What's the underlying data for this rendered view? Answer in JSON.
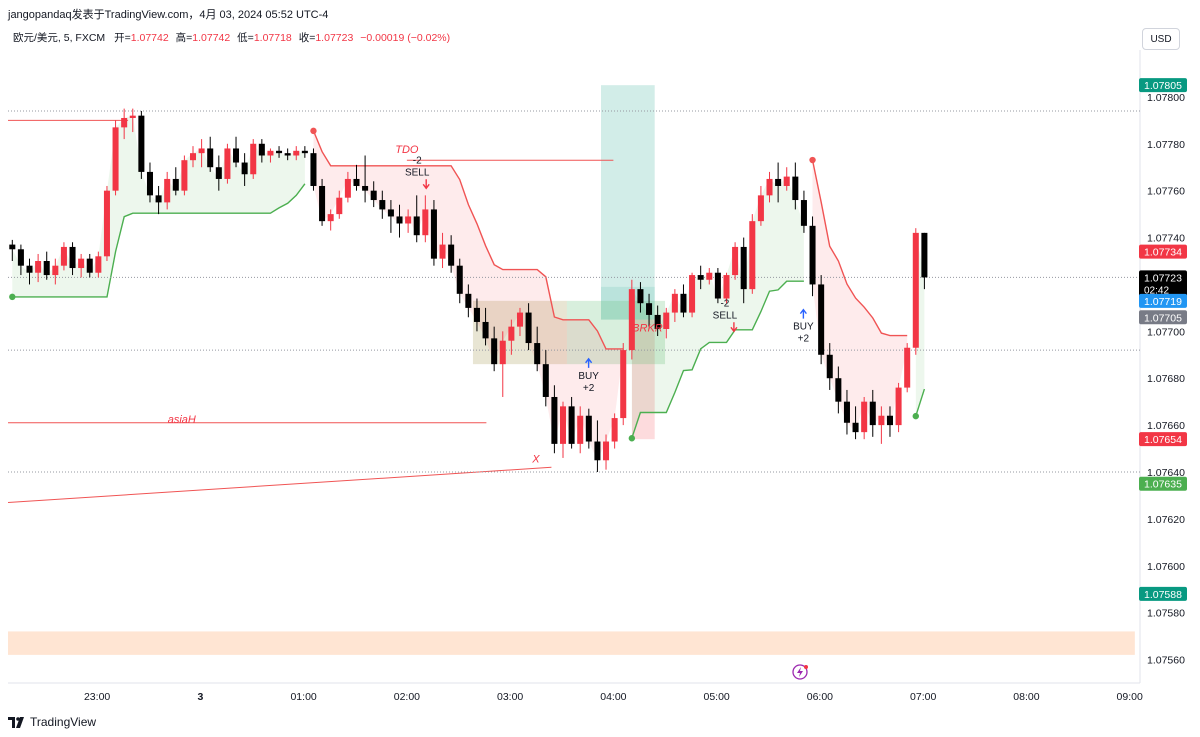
{
  "header": {
    "publisher": "jangopandaq发表于TradingView.com，4月 03, 2024 05:52 UTC-4",
    "symbol": "欧元/美元, 5, FXCM",
    "open_label": "开=",
    "open": "1.07742",
    "high_label": "高=",
    "high": "1.07742",
    "low_label": "低=",
    "low": "1.07718",
    "close_label": "收=",
    "close": "1.07723",
    "change": "−0.00019 (−0.02%)",
    "currency": "USD"
  },
  "footer": {
    "logo_text": "TradingView",
    "logo_icon": "tradingview-logo-icon"
  },
  "colors": {
    "up": "#f23645",
    "down": "#000000",
    "accent_green": "#089981",
    "blue": "#2962ff",
    "supertrend_up": "#4caf50",
    "supertrend_down": "#f05454"
  },
  "chart_data": {
    "type": "candlestick",
    "ylim": [
      1.0755,
      1.0782
    ],
    "y_ticks": [
      "1.07800",
      "1.07780",
      "1.07760",
      "1.07740",
      "1.07720",
      "1.07700",
      "1.07680",
      "1.07660",
      "1.07640",
      "1.07620",
      "1.07600",
      "1.07580",
      "1.07560"
    ],
    "x_ticks": [
      {
        "label": "23:00",
        "t": 23.0
      },
      {
        "label": "3",
        "t": 24.0
      },
      {
        "label": "01:00",
        "t": 25.0
      },
      {
        "label": "02:00",
        "t": 26.0
      },
      {
        "label": "03:00",
        "t": 27.0
      },
      {
        "label": "04:00",
        "t": 28.0
      },
      {
        "label": "05:00",
        "t": 29.0
      },
      {
        "label": "06:00",
        "t": 30.0
      },
      {
        "label": "07:00",
        "t": 31.0
      },
      {
        "label": "08:00",
        "t": 32.0
      },
      {
        "label": "09:00",
        "t": 33.0
      }
    ],
    "x_range": [
      22.137,
      33.1
    ],
    "candles": [
      [
        1.07737,
        1.07739,
        1.0773,
        1.07735
      ],
      [
        1.07735,
        1.07737,
        1.07724,
        1.07728
      ],
      [
        1.07728,
        1.07731,
        1.0772,
        1.07725
      ],
      [
        1.07725,
        1.07733,
        1.07721,
        1.0773
      ],
      [
        1.0773,
        1.07734,
        1.07722,
        1.07724
      ],
      [
        1.07724,
        1.07731,
        1.0772,
        1.07728
      ],
      [
        1.07728,
        1.07738,
        1.07726,
        1.07736
      ],
      [
        1.07736,
        1.07738,
        1.07724,
        1.07727
      ],
      [
        1.07727,
        1.07733,
        1.07723,
        1.07731
      ],
      [
        1.07731,
        1.07733,
        1.07723,
        1.07725
      ],
      [
        1.07725,
        1.07734,
        1.07723,
        1.07732
      ],
      [
        1.07732,
        1.07762,
        1.0773,
        1.0776
      ],
      [
        1.0776,
        1.0779,
        1.07758,
        1.07787
      ],
      [
        1.07787,
        1.07795,
        1.07782,
        1.07791
      ],
      [
        1.07791,
        1.07795,
        1.07785,
        1.07792
      ],
      [
        1.07792,
        1.07794,
        1.07765,
        1.07768
      ],
      [
        1.07768,
        1.07772,
        1.07755,
        1.07758
      ],
      [
        1.07758,
        1.07762,
        1.0775,
        1.07755
      ],
      [
        1.07755,
        1.07768,
        1.07752,
        1.07765
      ],
      [
        1.07765,
        1.0777,
        1.07758,
        1.0776
      ],
      [
        1.0776,
        1.07775,
        1.07758,
        1.07773
      ],
      [
        1.07773,
        1.07779,
        1.0777,
        1.07776
      ],
      [
        1.07776,
        1.07782,
        1.0777,
        1.07778
      ],
      [
        1.07778,
        1.07783,
        1.07768,
        1.0777
      ],
      [
        1.0777,
        1.07775,
        1.0776,
        1.07765
      ],
      [
        1.07765,
        1.0778,
        1.07763,
        1.07778
      ],
      [
        1.07778,
        1.07783,
        1.0777,
        1.07772
      ],
      [
        1.07772,
        1.07776,
        1.07762,
        1.07767
      ],
      [
        1.07767,
        1.07782,
        1.07765,
        1.0778
      ],
      [
        1.0778,
        1.07782,
        1.07772,
        1.07775
      ],
      [
        1.07775,
        1.07778,
        1.07772,
        1.07777
      ],
      [
        1.07777,
        1.07779,
        1.07774,
        1.07776
      ],
      [
        1.07776,
        1.07778,
        1.07773,
        1.07775
      ],
      [
        1.07775,
        1.07779,
        1.07773,
        1.07777
      ],
      [
        1.07777,
        1.07779,
        1.07774,
        1.07776
      ],
      [
        1.07776,
        1.07778,
        1.0776,
        1.07762
      ],
      [
        1.07762,
        1.07765,
        1.07745,
        1.07747
      ],
      [
        1.07747,
        1.07752,
        1.07743,
        1.0775
      ],
      [
        1.0775,
        1.0776,
        1.07748,
        1.07757
      ],
      [
        1.07757,
        1.07768,
        1.07755,
        1.07765
      ],
      [
        1.07765,
        1.07771,
        1.0776,
        1.07762
      ],
      [
        1.07762,
        1.07775,
        1.07755,
        1.0776
      ],
      [
        1.0776,
        1.07764,
        1.07753,
        1.07756
      ],
      [
        1.07756,
        1.0776,
        1.07748,
        1.07752
      ],
      [
        1.07752,
        1.07756,
        1.07742,
        1.07749
      ],
      [
        1.07749,
        1.07754,
        1.0774,
        1.07746
      ],
      [
        1.07746,
        1.07752,
        1.07742,
        1.07749
      ],
      [
        1.07749,
        1.07758,
        1.07738,
        1.07741
      ],
      [
        1.07741,
        1.07758,
        1.07738,
        1.07752
      ],
      [
        1.07752,
        1.07756,
        1.07728,
        1.07731
      ],
      [
        1.07731,
        1.07742,
        1.07727,
        1.07737
      ],
      [
        1.07737,
        1.07741,
        1.07725,
        1.07728
      ],
      [
        1.07728,
        1.07731,
        1.07712,
        1.07716
      ],
      [
        1.07716,
        1.0772,
        1.07706,
        1.0771
      ],
      [
        1.0771,
        1.07714,
        1.077,
        1.07704
      ],
      [
        1.07704,
        1.0771,
        1.07694,
        1.07697
      ],
      [
        1.07697,
        1.07702,
        1.07683,
        1.07686
      ],
      [
        1.07686,
        1.077,
        1.07672,
        1.07696
      ],
      [
        1.07696,
        1.07705,
        1.0769,
        1.07702
      ],
      [
        1.07702,
        1.0771,
        1.07698,
        1.07708
      ],
      [
        1.07708,
        1.07712,
        1.07692,
        1.07695
      ],
      [
        1.07695,
        1.07702,
        1.07683,
        1.07686
      ],
      [
        1.07686,
        1.07692,
        1.07668,
        1.07672
      ],
      [
        1.07672,
        1.07677,
        1.07648,
        1.07652
      ],
      [
        1.07652,
        1.0767,
        1.07646,
        1.07668
      ],
      [
        1.07668,
        1.07672,
        1.0765,
        1.07652
      ],
      [
        1.07652,
        1.07668,
        1.07648,
        1.07664
      ],
      [
        1.07664,
        1.07667,
        1.0765,
        1.07653
      ],
      [
        1.07653,
        1.07662,
        1.0764,
        1.07645
      ],
      [
        1.07645,
        1.07656,
        1.07641,
        1.07653
      ],
      [
        1.07653,
        1.07665,
        1.0765,
        1.07663
      ],
      [
        1.07663,
        1.07695,
        1.0766,
        1.07692
      ],
      [
        1.07692,
        1.07722,
        1.07688,
        1.07718
      ],
      [
        1.07718,
        1.07721,
        1.07708,
        1.07712
      ],
      [
        1.07712,
        1.07716,
        1.07702,
        1.07707
      ],
      [
        1.07707,
        1.07711,
        1.07698,
        1.07701
      ],
      [
        1.07701,
        1.0771,
        1.07697,
        1.07708
      ],
      [
        1.07708,
        1.07718,
        1.07704,
        1.07716
      ],
      [
        1.07716,
        1.0772,
        1.07706,
        1.07708
      ],
      [
        1.07708,
        1.07725,
        1.07706,
        1.07724
      ],
      [
        1.07724,
        1.07728,
        1.07718,
        1.07722
      ],
      [
        1.07722,
        1.07727,
        1.0772,
        1.07725
      ],
      [
        1.07725,
        1.07727,
        1.07712,
        1.07714
      ],
      [
        1.07714,
        1.07725,
        1.07712,
        1.07724
      ],
      [
        1.07724,
        1.07738,
        1.07722,
        1.07736
      ],
      [
        1.07736,
        1.0774,
        1.07712,
        1.07718
      ],
      [
        1.07718,
        1.0775,
        1.07716,
        1.07747
      ],
      [
        1.07747,
        1.07762,
        1.07745,
        1.07758
      ],
      [
        1.07758,
        1.07768,
        1.07755,
        1.07765
      ],
      [
        1.07765,
        1.07772,
        1.07755,
        1.07762
      ],
      [
        1.07762,
        1.0777,
        1.0776,
        1.07766
      ],
      [
        1.07766,
        1.07772,
        1.07752,
        1.07756
      ],
      [
        1.07756,
        1.0776,
        1.07742,
        1.07745
      ],
      [
        1.07745,
        1.07749,
        1.07715,
        1.0772
      ],
      [
        1.0772,
        1.07724,
        1.07686,
        1.0769
      ],
      [
        1.0769,
        1.07695,
        1.07675,
        1.0768
      ],
      [
        1.0768,
        1.07685,
        1.07665,
        1.0767
      ],
      [
        1.0767,
        1.07675,
        1.07656,
        1.07661
      ],
      [
        1.07661,
        1.07668,
        1.07654,
        1.07657
      ],
      [
        1.07657,
        1.07672,
        1.07654,
        1.0767
      ],
      [
        1.0767,
        1.07675,
        1.07655,
        1.0766
      ],
      [
        1.0766,
        1.07668,
        1.07652,
        1.07664
      ],
      [
        1.07664,
        1.07668,
        1.07655,
        1.0766
      ],
      [
        1.0766,
        1.07678,
        1.07657,
        1.07676
      ],
      [
        1.07676,
        1.07695,
        1.07674,
        1.07693
      ],
      [
        1.07693,
        1.07744,
        1.0769,
        1.07742
      ],
      [
        1.07742,
        1.07742,
        1.07718,
        1.07723
      ]
    ],
    "price_labels": [
      {
        "text": "1.07805",
        "price": 1.07805,
        "bg": "#089981",
        "fg": "#ffffff"
      },
      {
        "text": "1.07734",
        "price": 1.07734,
        "bg": "#f23645",
        "fg": "#ffffff"
      },
      {
        "text": "1.07723",
        "price": 1.07723,
        "bg": "#000000",
        "fg": "#ffffff",
        "sub": "02:42"
      },
      {
        "text": "1.07719",
        "price": 1.07713,
        "bg": "#2196f3",
        "fg": "#ffffff"
      },
      {
        "text": "1.07705",
        "price": 1.07706,
        "bg": "#787b86",
        "fg": "#ffffff"
      },
      {
        "text": "1.07654",
        "price": 1.07654,
        "bg": "#f23645",
        "fg": "#ffffff"
      },
      {
        "text": "1.07635",
        "price": 1.07635,
        "bg": "#4caf50",
        "fg": "#ffffff"
      },
      {
        "text": "1.07588",
        "price": 1.07588,
        "bg": "#089981",
        "fg": "#ffffff"
      }
    ],
    "dotted_levels": [
      1.07794,
      1.07723,
      1.07692,
      1.0764
    ],
    "annotations": [
      {
        "text": "TDO",
        "t": 26.0,
        "price": 1.07776,
        "color": "#f23645",
        "italic": true
      },
      {
        "text": "asiaH",
        "t": 23.82,
        "price": 1.07661,
        "color": "#f23645",
        "italic": true
      },
      {
        "text": "BRKR",
        "t": 28.33,
        "price": 1.077,
        "color": "#f23645",
        "italic": true
      },
      {
        "text": "X",
        "t": 27.25,
        "price": 1.07644,
        "color": "#f23645",
        "italic": true
      }
    ],
    "signals": [
      {
        "side": "sell",
        "line1": "-2",
        "line2": "SELL",
        "t": 26.1,
        "price": 1.07764
      },
      {
        "side": "buy",
        "line1": "BUY",
        "line2": "+2",
        "t": 27.76,
        "price": 1.07684
      },
      {
        "side": "sell",
        "line1": "-2",
        "line2": "SELL",
        "t": 29.08,
        "price": 1.07703
      },
      {
        "side": "buy",
        "line1": "BUY",
        "line2": "+2",
        "t": 29.84,
        "price": 1.07705
      }
    ],
    "lines": [
      {
        "id": "asia-high-line",
        "t1": 22.137,
        "p1": 1.07661,
        "t2": 26.77,
        "p2": 1.07661,
        "color": "#f05454"
      },
      {
        "id": "tdo-line",
        "t1": 26.0,
        "p1": 1.07773,
        "t2": 28.0,
        "p2": 1.07773,
        "color": "#f05454"
      },
      {
        "id": "prev-high-line",
        "t1": 22.137,
        "p1": 1.0779,
        "t2": 23.3,
        "p2": 1.0779,
        "color": "#f05454"
      },
      {
        "id": "trend-line",
        "t1": 22.137,
        "p1": 1.07627,
        "t2": 27.4,
        "p2": 1.07642,
        "color": "#f05454"
      }
    ],
    "boxes": [
      {
        "id": "long-target-zone",
        "t1": 27.88,
        "t2": 28.4,
        "p1": 1.07805,
        "p2": 1.07719,
        "fill": "rgba(8,153,129,0.18)"
      },
      {
        "id": "long-entry-zone",
        "t1": 27.88,
        "t2": 28.4,
        "p1": 1.07719,
        "p2": 1.07705,
        "fill": "rgba(8,153,129,0.28)"
      },
      {
        "id": "long-stop-zone",
        "t1": 28.18,
        "t2": 28.4,
        "p1": 1.07705,
        "p2": 1.07654,
        "fill": "rgba(242,54,69,0.18)"
      },
      {
        "id": "fvg-zone",
        "t1": 26.64,
        "t2": 27.55,
        "p1": 1.07713,
        "p2": 1.07686,
        "fill": "rgba(180,170,110,0.30)"
      },
      {
        "id": "fvg-zone-green",
        "t1": 27.55,
        "t2": 28.5,
        "p1": 1.07713,
        "p2": 1.07686,
        "fill": "rgba(100,190,120,0.25)"
      },
      {
        "id": "bottom-band",
        "t1": 22.137,
        "t2": 33.05,
        "p1": 1.07572,
        "p2": 1.07562,
        "fill": "rgba(255,152,80,0.25)"
      }
    ]
  }
}
